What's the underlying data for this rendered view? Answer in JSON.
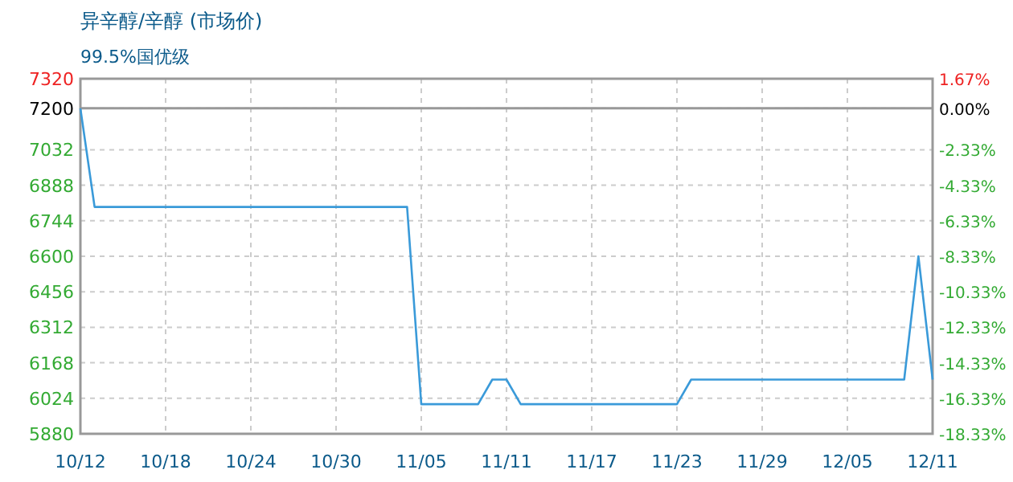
{
  "chart_data": {
    "type": "line",
    "title": "异辛醇/辛醇 (市场价)",
    "subtitle": "99.5%国优级",
    "x": [
      "--10-12",
      "--10-13",
      "--11-04",
      "--11-05",
      "--11-09",
      "--11-10",
      "--11-11",
      "--11-12",
      "--11-23",
      "--11-24",
      "--12-09",
      "--12-10",
      "--12-11"
    ],
    "series": [
      {
        "color": "#3a9ad9",
        "values": [
          7200,
          6800,
          6800,
          6000,
          6000,
          6100,
          6100,
          6000,
          6000,
          6100,
          6100,
          6600,
          6100
        ]
      }
    ],
    "xlim": [
      "--10-12",
      "--12-11"
    ],
    "xticks": [
      {
        "value": "--10-12",
        "label": "10/12"
      },
      {
        "value": "--10-18",
        "label": "10/18"
      },
      {
        "value": "--10-24",
        "label": "10/24"
      },
      {
        "value": "--10-30",
        "label": "10/30"
      },
      {
        "value": "--11-05",
        "label": "11/05"
      },
      {
        "value": "--11-11",
        "label": "11/11"
      },
      {
        "value": "--11-17",
        "label": "11/17"
      },
      {
        "value": "--11-23",
        "label": "11/23"
      },
      {
        "value": "--11-29",
        "label": "11/29"
      },
      {
        "value": "--12-05",
        "label": "12/05"
      },
      {
        "value": "--12-11",
        "label": "12/11"
      }
    ],
    "ylim": [
      5880,
      7320
    ],
    "yticks": [
      5880,
      6024,
      6168,
      6312,
      6456,
      6600,
      6744,
      6888,
      7032,
      7200,
      7320
    ],
    "y2lim": [
      -18.33,
      1.67
    ],
    "y2ticks": [
      {
        "value": -18.33,
        "label": "-18.33%"
      },
      {
        "value": -16.33,
        "label": "-16.33%"
      },
      {
        "value": -14.33,
        "label": "-14.33%"
      },
      {
        "value": -12.33,
        "label": "-12.33%"
      },
      {
        "value": -10.33,
        "label": "-10.33%"
      },
      {
        "value": -8.33,
        "label": "-8.33%"
      },
      {
        "value": -6.33,
        "label": "-6.33%"
      },
      {
        "value": -4.33,
        "label": "-4.33%"
      },
      {
        "value": -2.33,
        "label": "-2.33%"
      },
      {
        "value": 0,
        "label": "0.00%"
      },
      {
        "value": 1.67,
        "label": "1.67%"
      }
    ],
    "ref_lines": [
      {
        "axis": "y",
        "value": 7200,
        "color": "#999999"
      }
    ],
    "grid": true,
    "line_style": "solid"
  }
}
